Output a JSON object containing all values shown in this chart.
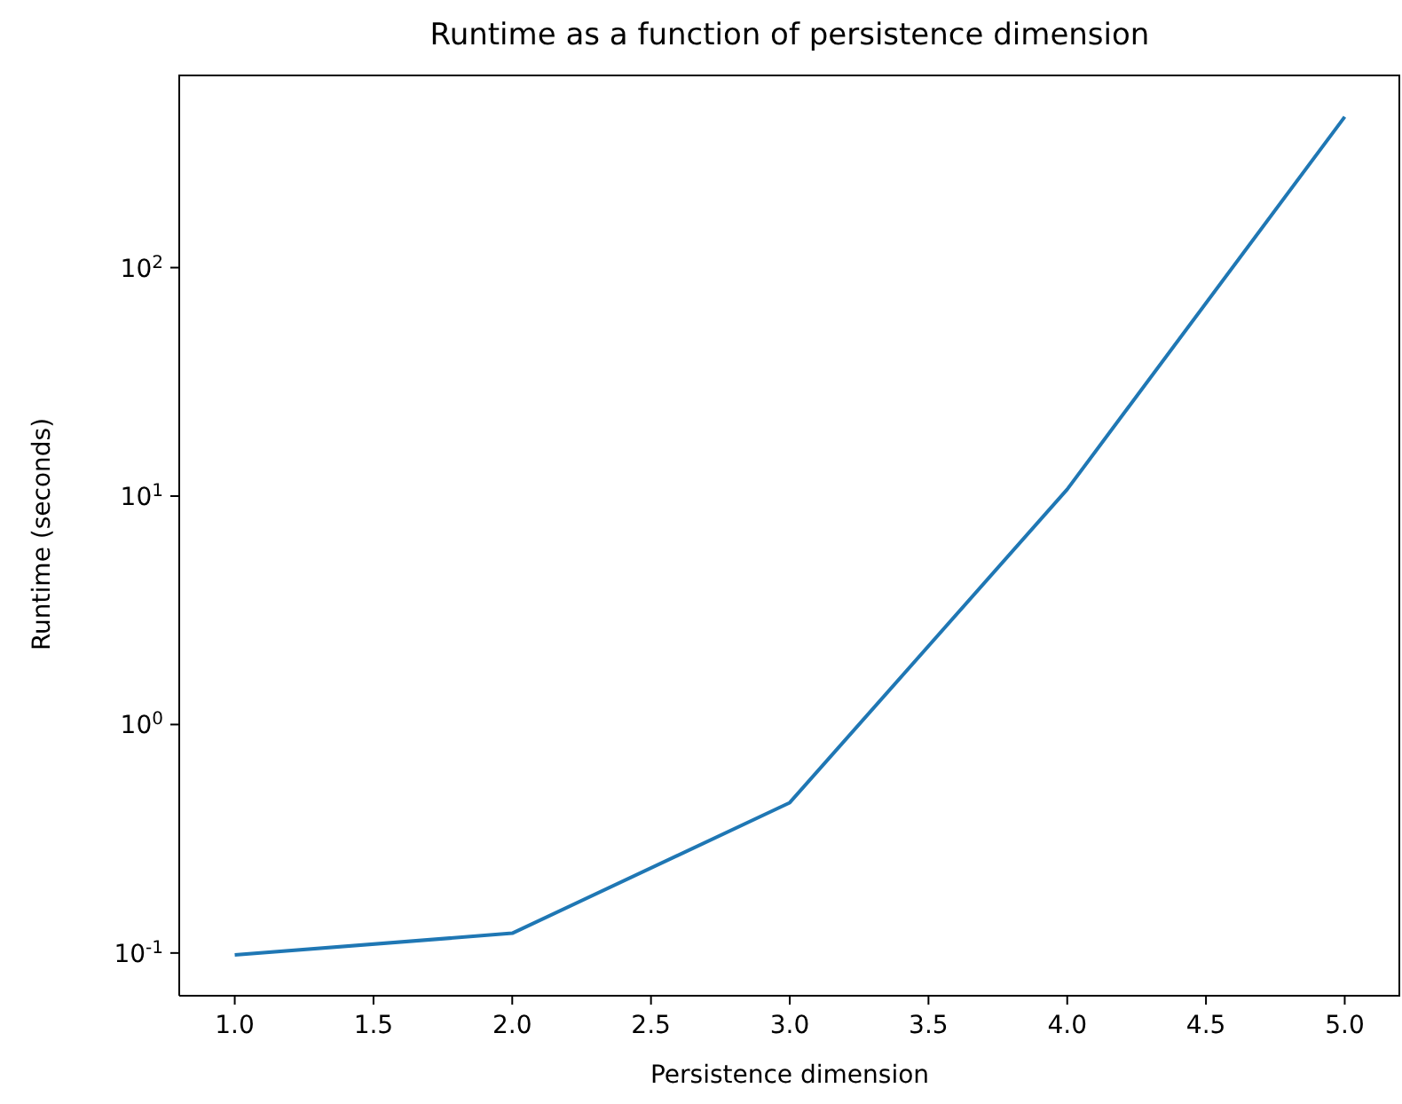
{
  "chart_data": {
    "type": "line",
    "title": "Runtime as a function of persistence dimension",
    "xlabel": "Persistence dimension",
    "ylabel": "Runtime (seconds)",
    "x": [
      1,
      2,
      3,
      4,
      5
    ],
    "series": [
      {
        "color": "#1f77b4",
        "values": [
          0.098,
          0.122,
          0.455,
          10.7,
          457
        ]
      }
    ],
    "xlim": [
      0.8,
      5.2
    ],
    "xticks": [
      {
        "value": 1,
        "label": "1.0"
      },
      {
        "value": 1.5,
        "label": "1.5"
      },
      {
        "value": 2,
        "label": "2.0"
      },
      {
        "value": 2.5,
        "label": "2.5"
      },
      {
        "value": 3,
        "label": "3.0"
      },
      {
        "value": 3.5,
        "label": "3.5"
      },
      {
        "value": 4,
        "label": "4.0"
      },
      {
        "value": 4.5,
        "label": "4.5"
      },
      {
        "value": 5,
        "label": "5.0"
      }
    ],
    "ylim": [
      0.065,
      700
    ],
    "yticks": [
      {
        "value": 0.1,
        "label": "10$^{-1}$"
      },
      {
        "value": 1,
        "label": "10$^{0}$"
      },
      {
        "value": 10,
        "label": "10$^{1}$"
      },
      {
        "value": 100,
        "label": "10$^{2}$"
      }
    ],
    "log": "y",
    "grid": false,
    "legend": false,
    "marker": "none",
    "line_style": "solid"
  }
}
